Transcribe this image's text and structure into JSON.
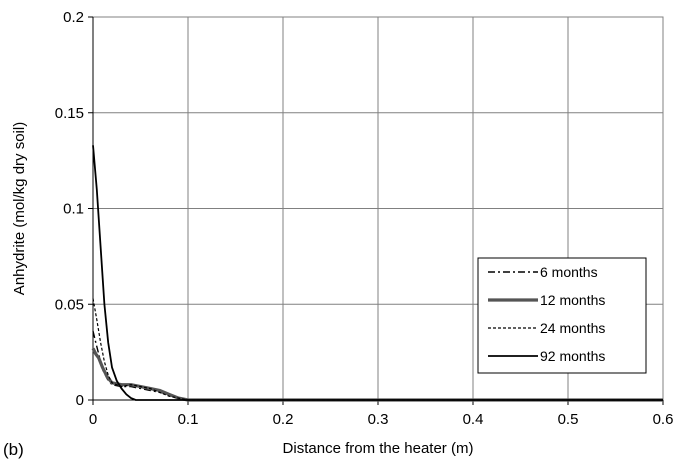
{
  "chart_data": {
    "type": "line",
    "panel_label": "(b)",
    "xlabel": "Distance from the heater (m)",
    "ylabel": "Anhydrite (mol/kg dry soil)",
    "xlim": [
      0,
      0.6
    ],
    "ylim": [
      0,
      0.2
    ],
    "x_ticks": [
      0,
      0.1,
      0.2,
      0.3,
      0.4,
      0.5,
      0.6
    ],
    "x_tick_labels": [
      "0",
      "0.1",
      "0.2",
      "0.3",
      "0.4",
      "0.5",
      "0.6"
    ],
    "y_ticks": [
      0,
      0.05,
      0.1,
      0.15,
      0.2
    ],
    "y_tick_labels": [
      "0",
      "0.05",
      "0.1",
      "0.15",
      "0.2"
    ],
    "grid": true,
    "legend_position": "right",
    "series": [
      {
        "name": "6 months",
        "style": "dash-dot",
        "x": [
          0,
          0.003,
          0.006,
          0.01,
          0.015,
          0.02,
          0.03,
          0.04,
          0.05,
          0.06,
          0.08,
          0.09,
          0.1,
          0.6
        ],
        "y": [
          0.036,
          0.03,
          0.024,
          0.016,
          0.011,
          0.008,
          0.007,
          0.007,
          0.006,
          0.005,
          0.003,
          0.001,
          0,
          0
        ]
      },
      {
        "name": "12 months",
        "style": "thick",
        "x": [
          0,
          0.003,
          0.006,
          0.01,
          0.015,
          0.02,
          0.03,
          0.04,
          0.05,
          0.06,
          0.07,
          0.08,
          0.09,
          0.1,
          0.6
        ],
        "y": [
          0.027,
          0.024,
          0.022,
          0.017,
          0.012,
          0.009,
          0.008,
          0.008,
          0.007,
          0.006,
          0.005,
          0.003,
          0.001,
          0,
          0
        ]
      },
      {
        "name": "24 months",
        "style": "dashed",
        "x": [
          0,
          0.004,
          0.008,
          0.012,
          0.016,
          0.02,
          0.03,
          0.04,
          0.05,
          0.06,
          0.07,
          0.08,
          0.09,
          0.1,
          0.6
        ],
        "y": [
          0.053,
          0.042,
          0.03,
          0.02,
          0.013,
          0.009,
          0.007,
          0.008,
          0.007,
          0.006,
          0.004,
          0.002,
          0.001,
          0,
          0
        ]
      },
      {
        "name": "92 months",
        "style": "solid",
        "x": [
          0,
          0.004,
          0.008,
          0.012,
          0.016,
          0.02,
          0.025,
          0.03,
          0.035,
          0.04,
          0.045,
          0.6
        ],
        "y": [
          0.133,
          0.11,
          0.08,
          0.05,
          0.03,
          0.017,
          0.01,
          0.006,
          0.003,
          0.001,
          0,
          0
        ]
      }
    ]
  }
}
